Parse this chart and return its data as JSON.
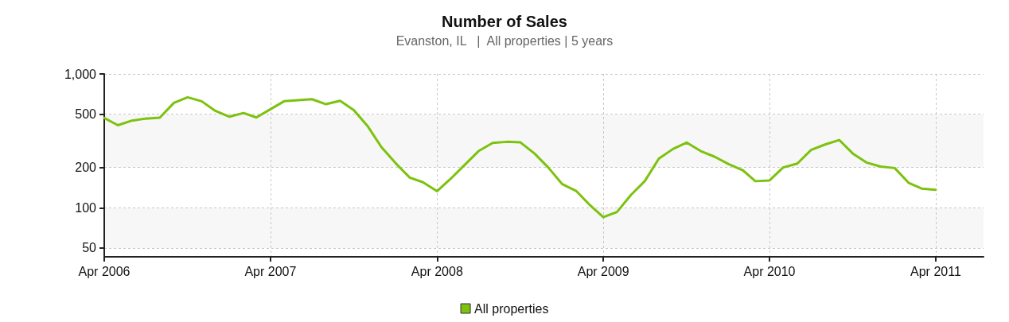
{
  "chart_data": {
    "type": "line",
    "title": "Number of Sales",
    "subtitle": "Evanston, IL   |  All properties | 5 years",
    "x": [
      "2006-04",
      "2006-05",
      "2006-06",
      "2006-07",
      "2006-08",
      "2006-09",
      "2006-10",
      "2006-11",
      "2006-12",
      "2007-01",
      "2007-02",
      "2007-03",
      "2007-04",
      "2007-05",
      "2007-06",
      "2007-07",
      "2007-08",
      "2007-09",
      "2007-10",
      "2007-11",
      "2007-12",
      "2008-01",
      "2008-02",
      "2008-03",
      "2008-04",
      "2008-05",
      "2008-06",
      "2008-07",
      "2008-08",
      "2008-09",
      "2008-10",
      "2008-11",
      "2008-12",
      "2009-01",
      "2009-02",
      "2009-03",
      "2009-04",
      "2009-05",
      "2009-06",
      "2009-07",
      "2009-08",
      "2009-09",
      "2009-10",
      "2009-11",
      "2009-12",
      "2010-01",
      "2010-02",
      "2010-03",
      "2010-04",
      "2010-05",
      "2010-06",
      "2010-07",
      "2010-08",
      "2010-09",
      "2010-10",
      "2010-11",
      "2010-12",
      "2011-01",
      "2011-02",
      "2011-03",
      "2011-04"
    ],
    "series": [
      {
        "name": "All properties",
        "color": "#7cc20e",
        "values": [
          469,
          414,
          448,
          464,
          471,
          608,
          669,
          625,
          530,
          479,
          511,
          473,
          545,
          625,
          637,
          648,
          594,
          630,
          537,
          405,
          283,
          215,
          168,
          155,
          133,
          165,
          210,
          265,
          305,
          311,
          308,
          254,
          200,
          150,
          133,
          106,
          85,
          93,
          125,
          158,
          233,
          275,
          307,
          265,
          241,
          212,
          191,
          158,
          160,
          200,
          214,
          270,
          297,
          321,
          254,
          217,
          203,
          198,
          153,
          139,
          136
        ]
      }
    ],
    "xlim": [
      "2006-04",
      "2011-07-15"
    ],
    "xticks": [
      {
        "value": "2006-04",
        "label": "Apr 2006"
      },
      {
        "value": "2007-04",
        "label": "Apr 2007"
      },
      {
        "value": "2008-04",
        "label": "Apr 2008"
      },
      {
        "value": "2009-04",
        "label": "Apr 2009"
      },
      {
        "value": "2010-04",
        "label": "Apr 2010"
      },
      {
        "value": "2011-04",
        "label": "Apr 2011"
      }
    ],
    "ylim": [
      43,
      1000
    ],
    "yticks": [
      50,
      100,
      200,
      500,
      {
        "value": 1000,
        "label": "1,000"
      }
    ],
    "log": "y",
    "grid": true,
    "legend": "bottom",
    "marker": "none",
    "line_style": "solid"
  }
}
